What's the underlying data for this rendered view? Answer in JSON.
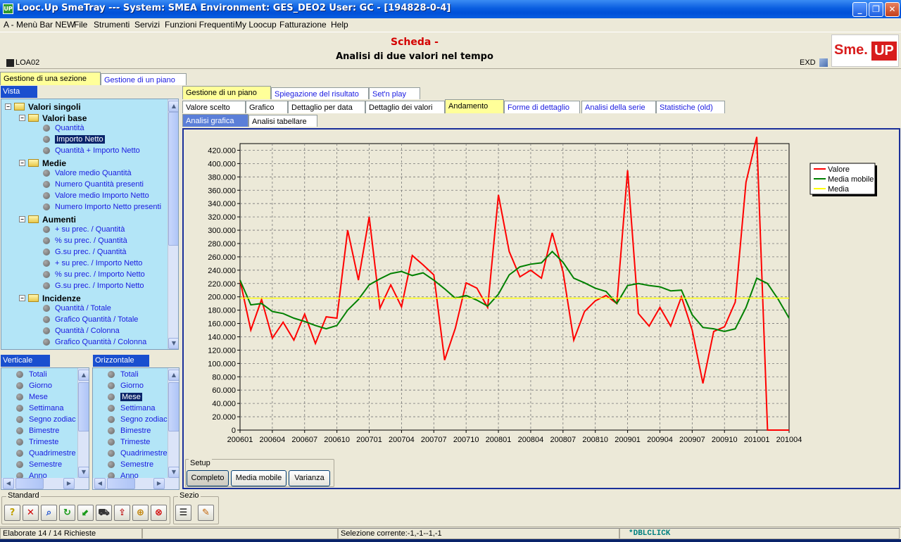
{
  "window": {
    "title": "Looc.Up SmeTray --- System: SMEA Environment: GES_DEO2 User: GC - [194828-0-4]",
    "app_icon": "UP",
    "controls": [
      "minimize",
      "restore",
      "close"
    ]
  },
  "menu": [
    "A - Menù Bar NEW",
    "File",
    "Strumenti",
    "Servizi",
    "Funzioni Frequenti",
    "My Loocup",
    "Fatturazione",
    "Help"
  ],
  "header": {
    "scheda": "Scheda -",
    "subtitle": "Analisi di due valori nel tempo",
    "code": "LOA02",
    "exd": "EXD",
    "logo_left": "Sme.",
    "logo_right": "UP"
  },
  "top_tabs": [
    "Gestione di una sezione",
    "Gestione di un piano"
  ],
  "vista": {
    "label": "Vista",
    "tree": [
      {
        "level": 0,
        "kind": "folder",
        "label": "Valori singoli"
      },
      {
        "level": 1,
        "kind": "folder",
        "label": "Valori base"
      },
      {
        "level": 2,
        "kind": "item",
        "label": "Quantità"
      },
      {
        "level": 2,
        "kind": "item",
        "label": "Importo Netto",
        "selected": true
      },
      {
        "level": 2,
        "kind": "item",
        "label": "Quantità + Importo Netto"
      },
      {
        "level": 1,
        "kind": "folder",
        "label": "Medie"
      },
      {
        "level": 2,
        "kind": "item",
        "label": "Valore medio Quantità"
      },
      {
        "level": 2,
        "kind": "item",
        "label": "Numero Quantità presenti"
      },
      {
        "level": 2,
        "kind": "item",
        "label": "Valore medio Importo Netto"
      },
      {
        "level": 2,
        "kind": "item",
        "label": "Numero Importo Netto presenti"
      },
      {
        "level": 1,
        "kind": "folder",
        "label": "Aumenti"
      },
      {
        "level": 2,
        "kind": "item",
        "label": "+ su prec. / Quantità"
      },
      {
        "level": 2,
        "kind": "item",
        "label": "% su prec. / Quantità"
      },
      {
        "level": 2,
        "kind": "item",
        "label": "G.su prec. / Quantità"
      },
      {
        "level": 2,
        "kind": "item",
        "label": "+ su prec. / Importo Netto"
      },
      {
        "level": 2,
        "kind": "item",
        "label": "% su prec. / Importo Netto"
      },
      {
        "level": 2,
        "kind": "item",
        "label": "G.su prec. / Importo Netto"
      },
      {
        "level": 1,
        "kind": "folder",
        "label": "Incidenze"
      },
      {
        "level": 2,
        "kind": "item",
        "label": "Quantità / Totale"
      },
      {
        "level": 2,
        "kind": "item",
        "label": "Grafico Quantità / Totale"
      },
      {
        "level": 2,
        "kind": "item",
        "label": "Quantità / Colonna"
      },
      {
        "level": 2,
        "kind": "item",
        "label": "Grafico Quantità / Colonna"
      }
    ]
  },
  "verticale": {
    "label": "Verticale",
    "items": [
      "Totali",
      "Giorno",
      "Mese",
      "Settimana",
      "Segno zodiac",
      "Bimestre",
      "Trimeste",
      "Quadrimestre",
      "Semestre",
      "Anno"
    ]
  },
  "orizzontale": {
    "label": "Orizzontale",
    "items": [
      "Totali",
      "Giorno",
      "Mese",
      "Settimana",
      "Segno zodiac",
      "Bimestre",
      "Trimeste",
      "Quadrimestre",
      "Semestre",
      "Anno"
    ],
    "selected": "Mese"
  },
  "main_tabs": [
    "Gestione di un piano",
    "Spiegazione del risultato",
    "Set'n play"
  ],
  "sub_tabs": [
    "Valore scelto",
    "Grafico",
    "Dettaglio per data",
    "Dettaglio dei valori",
    "Andamento",
    "Forme di dettaglio",
    "Analisi della serie",
    "Statistiche (old)"
  ],
  "view_tabs": [
    "Analisi grafica",
    "Analisi tabellare"
  ],
  "setup": {
    "label": "Setup",
    "buttons": [
      "Completo",
      "Media mobile",
      "Varianza"
    ]
  },
  "toolbar": {
    "standard_label": "Standard",
    "sezio_label": "Sezio",
    "icons": [
      "help-icon",
      "close-x-icon",
      "search-icon",
      "refresh-icon",
      "export-icon",
      "cart-icon",
      "import-icon",
      "zoom-icon",
      "stop-icon"
    ],
    "sezio_icons": [
      "list-icon",
      "edit-icon"
    ]
  },
  "status": {
    "left": "Elaborate 14 / 14 Richieste",
    "middle": "Selezione corrente:-1,-1--1,-1",
    "right": "*DBLCLICK"
  },
  "chart_data": {
    "type": "line",
    "x_tick_labels": [
      "200601",
      "200604",
      "200607",
      "200610",
      "200701",
      "200704",
      "200707",
      "200710",
      "200801",
      "200804",
      "200807",
      "200810",
      "200901",
      "200904",
      "200907",
      "200910",
      "201001",
      "201004"
    ],
    "y_tick_labels": [
      "0",
      "20.000",
      "40.000",
      "60.000",
      "80.000",
      "100.000",
      "120.000",
      "140.000",
      "160.000",
      "180.000",
      "200.000",
      "220.000",
      "240.000",
      "260.000",
      "280.000",
      "300.000",
      "320.000",
      "340.000",
      "360.000",
      "380.000",
      "400.000",
      "420.000"
    ],
    "ylim": [
      0,
      430000
    ],
    "grid": true,
    "legend_position": "top-right",
    "series": [
      {
        "name": "Valore",
        "color": "#ff0000",
        "values": [
          225000,
          150000,
          196000,
          138000,
          162000,
          135000,
          174000,
          130000,
          170000,
          168000,
          300000,
          225000,
          320000,
          183000,
          218000,
          185000,
          262000,
          248000,
          233000,
          105000,
          153000,
          221000,
          213000,
          184000,
          353000,
          268000,
          230000,
          240000,
          228000,
          296000,
          238000,
          135000,
          178000,
          194000,
          202000,
          190000,
          390000,
          175000,
          156000,
          184000,
          156000,
          200000,
          150000,
          70000,
          148000,
          155000,
          192000,
          372000,
          440000,
          0,
          0,
          0
        ]
      },
      {
        "name": "Media mobile",
        "color": "#008000",
        "values": [
          225000,
          188000,
          190000,
          178000,
          175000,
          168000,
          163000,
          157000,
          152000,
          157000,
          180000,
          196000,
          218000,
          227000,
          235000,
          238000,
          232000,
          236000,
          225000,
          212000,
          198000,
          202000,
          195000,
          186000,
          204000,
          233000,
          245000,
          249000,
          251000,
          268000,
          252000,
          228000,
          221000,
          213000,
          208000,
          190000,
          217000,
          220000,
          217000,
          215000,
          209000,
          210000,
          173000,
          154000,
          152000,
          148000,
          152000,
          184000,
          228000,
          220000,
          196000,
          168000
        ]
      },
      {
        "name": "Media",
        "color": "#ffff00",
        "values": [
          198000,
          198000,
          198000,
          198000,
          198000,
          198000,
          198000,
          198000,
          198000,
          198000,
          198000,
          198000,
          198000,
          198000,
          198000,
          198000,
          198000,
          198000,
          198000,
          198000,
          198000,
          198000,
          198000,
          198000,
          198000,
          198000,
          198000,
          198000,
          198000,
          198000,
          198000,
          198000,
          198000,
          198000,
          198000,
          198000,
          198000,
          198000,
          198000,
          198000,
          198000,
          198000,
          198000,
          198000,
          198000,
          198000,
          198000,
          198000,
          198000,
          198000,
          198000,
          198000
        ]
      }
    ]
  }
}
